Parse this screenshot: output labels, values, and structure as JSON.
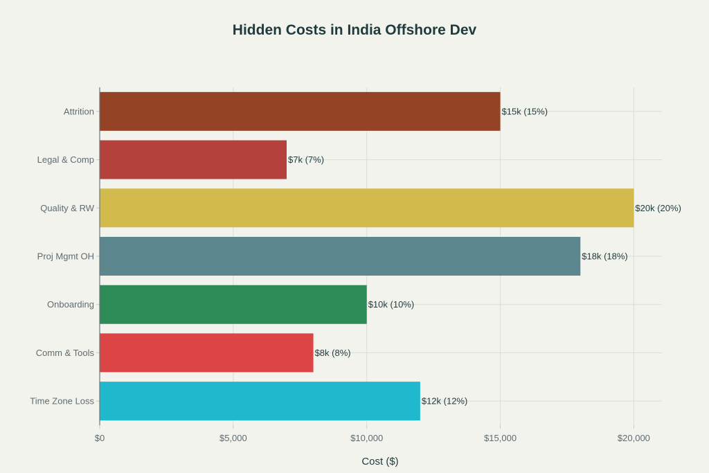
{
  "chart_data": {
    "type": "bar",
    "orientation": "horizontal",
    "title": "Hidden Costs in India Offshore Dev",
    "xlabel": "Cost ($)",
    "ylabel": "",
    "xlim": [
      0,
      21000
    ],
    "grid": true,
    "categories": [
      "Attrition",
      "Legal & Comp",
      "Quality & RW",
      "Proj Mgmt OH",
      "Onboarding",
      "Comm & Tools",
      "Time Zone Loss"
    ],
    "values": [
      15000,
      7000,
      20000,
      18000,
      10000,
      8000,
      12000
    ],
    "data_labels": [
      "$15k (15%)",
      "$7k (7%)",
      "$20k (20%)",
      "$18k (18%)",
      "$10k (10%)",
      "$8k (8%)",
      "$12k (12%)"
    ],
    "colors": [
      "#944325",
      "#B4413C",
      "#D2BA4C",
      "#5D878F",
      "#2E8B57",
      "#DB4545",
      "#1FB8CD"
    ],
    "x_ticks": [
      0,
      5000,
      10000,
      15000,
      20000
    ],
    "x_tick_labels": [
      "$0",
      "$5,000",
      "$10,000",
      "$15,000",
      "$20,000"
    ]
  }
}
